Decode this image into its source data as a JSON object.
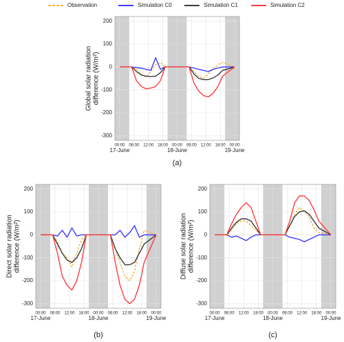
{
  "chart_data": [
    {
      "type": "line",
      "caption": "(a)",
      "ylabel": [
        "Global solar radiation",
        "difference (W/m²)"
      ],
      "x": [
        0,
        5,
        7,
        9,
        11,
        13,
        15,
        17,
        19,
        24,
        29,
        31,
        33,
        35,
        37,
        39,
        41,
        43,
        48
      ],
      "xlim": [
        -2,
        50
      ],
      "ylim": [
        -320,
        220
      ],
      "yticks": [
        200,
        100,
        0,
        -100,
        -200,
        -300
      ],
      "xticks": [
        {
          "value": 0,
          "label": "00:00"
        },
        {
          "value": 6,
          "label": "06:00"
        },
        {
          "value": 12,
          "label": "12:00"
        },
        {
          "value": 18,
          "label": "18:00"
        },
        {
          "value": 24,
          "label": "00:00"
        },
        {
          "value": 30,
          "label": "06:00"
        },
        {
          "value": 36,
          "label": "12:00"
        },
        {
          "value": 42,
          "label": "18:00"
        },
        {
          "value": 48,
          "label": "00:00"
        }
      ],
      "dates": [
        {
          "value": 0,
          "label": "17-June"
        },
        {
          "value": 24,
          "label": "18-June"
        },
        {
          "value": 48,
          "label": "19-June"
        }
      ],
      "night": [
        [
          -2,
          4
        ],
        [
          20,
          28
        ],
        [
          44,
          50
        ]
      ],
      "grid": true,
      "series": [
        {
          "name": "Observation",
          "color": "#f5b041",
          "dash": true,
          "values": [
            0,
            0,
            -10,
            -30,
            -45,
            -20,
            10,
            20,
            0,
            0,
            0,
            -20,
            -40,
            -50,
            -30,
            -10,
            10,
            20,
            0
          ]
        },
        {
          "name": "Simulation C0",
          "color": "#3b3bff",
          "dash": false,
          "values": [
            0,
            0,
            -3,
            -5,
            -10,
            -15,
            40,
            -10,
            0,
            0,
            0,
            -5,
            -10,
            -15,
            -20,
            -10,
            -5,
            0,
            0
          ]
        },
        {
          "name": "Simulation C1",
          "color": "#3a3a3a",
          "dash": false,
          "values": [
            0,
            0,
            -20,
            -35,
            -40,
            -42,
            -40,
            -25,
            0,
            0,
            0,
            -30,
            -50,
            -55,
            -55,
            -48,
            -35,
            -15,
            0
          ]
        },
        {
          "name": "Simulation C2",
          "color": "#ff3b3b",
          "dash": false,
          "values": [
            0,
            0,
            -60,
            -85,
            -95,
            -92,
            -85,
            -60,
            0,
            0,
            0,
            -70,
            -105,
            -125,
            -130,
            -115,
            -85,
            -40,
            0
          ]
        }
      ]
    },
    {
      "type": "line",
      "caption": "(b)",
      "ylabel": [
        "Direct solar radiation",
        "difference (W/m²)"
      ],
      "x": [
        0,
        5,
        7,
        9,
        11,
        13,
        15,
        17,
        19,
        24,
        29,
        31,
        33,
        35,
        37,
        39,
        41,
        43,
        48
      ],
      "xlim": [
        -2,
        50
      ],
      "ylim": [
        -320,
        220
      ],
      "yticks": [
        200,
        100,
        0,
        -100,
        -200,
        -300
      ],
      "xticks": [
        {
          "value": 0,
          "label": "00:00"
        },
        {
          "value": 6,
          "label": "06:00"
        },
        {
          "value": 12,
          "label": "12:00"
        },
        {
          "value": 18,
          "label": "18:00"
        },
        {
          "value": 24,
          "label": "00:00"
        },
        {
          "value": 30,
          "label": "06:00"
        },
        {
          "value": 36,
          "label": "12:00"
        },
        {
          "value": 42,
          "label": "18:00"
        },
        {
          "value": 48,
          "label": "00:00"
        }
      ],
      "dates": [
        {
          "value": 0,
          "label": "17-June"
        },
        {
          "value": 24,
          "label": "18-June"
        },
        {
          "value": 48,
          "label": "19-June"
        }
      ],
      "night": [
        [
          -2,
          4
        ],
        [
          20,
          28
        ],
        [
          44,
          50
        ]
      ],
      "grid": true,
      "series": [
        {
          "name": "Observation",
          "color": "#f5b041",
          "dash": true,
          "values": [
            0,
            0,
            -30,
            -80,
            -100,
            -140,
            -80,
            -20,
            0,
            0,
            0,
            -60,
            -120,
            -180,
            -200,
            -160,
            -60,
            20,
            0
          ]
        },
        {
          "name": "Simulation C0",
          "color": "#3b3bff",
          "dash": false,
          "values": [
            0,
            0,
            -5,
            20,
            -10,
            30,
            -5,
            0,
            0,
            0,
            0,
            0,
            20,
            -10,
            10,
            40,
            -10,
            0,
            0
          ]
        },
        {
          "name": "Simulation C1",
          "color": "#3a3a3a",
          "dash": false,
          "values": [
            0,
            0,
            -40,
            -80,
            -110,
            -120,
            -100,
            -60,
            0,
            0,
            0,
            -60,
            -100,
            -130,
            -130,
            -120,
            -80,
            -40,
            0
          ]
        },
        {
          "name": "Simulation C2",
          "color": "#ff3b3b",
          "dash": false,
          "values": [
            0,
            0,
            -80,
            -180,
            -220,
            -240,
            -200,
            -120,
            0,
            0,
            0,
            -120,
            -220,
            -280,
            -300,
            -280,
            -220,
            -120,
            0
          ]
        }
      ]
    },
    {
      "type": "line",
      "caption": "(c)",
      "ylabel": [
        "Diffuse solar radiation",
        "difference (W/m²)"
      ],
      "x": [
        0,
        5,
        7,
        9,
        11,
        13,
        15,
        17,
        19,
        24,
        29,
        31,
        33,
        35,
        37,
        39,
        41,
        43,
        48
      ],
      "xlim": [
        -2,
        50
      ],
      "ylim": [
        -320,
        220
      ],
      "yticks": [
        200,
        100,
        0,
        -100,
        -200,
        -300
      ],
      "xticks": [
        {
          "value": 0,
          "label": "00:00"
        },
        {
          "value": 6,
          "label": "06:00"
        },
        {
          "value": 12,
          "label": "12:00"
        },
        {
          "value": 18,
          "label": "18:00"
        },
        {
          "value": 24,
          "label": "00:00"
        },
        {
          "value": 30,
          "label": "06:00"
        },
        {
          "value": 36,
          "label": "12:00"
        },
        {
          "value": 42,
          "label": "18:00"
        },
        {
          "value": 48,
          "label": "00:00"
        }
      ],
      "dates": [
        {
          "value": 0,
          "label": "17-June"
        },
        {
          "value": 24,
          "label": "18-June"
        },
        {
          "value": 48,
          "label": "19-June"
        }
      ],
      "night": [
        [
          -2,
          4
        ],
        [
          20,
          28
        ],
        [
          44,
          50
        ]
      ],
      "grid": true,
      "series": [
        {
          "name": "Observation",
          "color": "#f5b041",
          "dash": true,
          "values": [
            0,
            0,
            20,
            50,
            60,
            60,
            40,
            20,
            0,
            0,
            0,
            40,
            90,
            120,
            100,
            80,
            30,
            10,
            0
          ]
        },
        {
          "name": "Simulation C0",
          "color": "#3b3bff",
          "dash": false,
          "values": [
            0,
            0,
            -10,
            -5,
            -15,
            -25,
            -10,
            0,
            0,
            0,
            0,
            -10,
            -15,
            -20,
            -30,
            -20,
            -10,
            0,
            0
          ]
        },
        {
          "name": "Simulation C1",
          "color": "#3a3a3a",
          "dash": false,
          "values": [
            0,
            0,
            30,
            55,
            70,
            70,
            60,
            30,
            0,
            0,
            0,
            40,
            80,
            100,
            105,
            90,
            60,
            30,
            0
          ]
        },
        {
          "name": "Simulation C2",
          "color": "#ff3b3b",
          "dash": false,
          "values": [
            0,
            0,
            50,
            90,
            120,
            140,
            120,
            60,
            0,
            0,
            0,
            60,
            140,
            170,
            170,
            150,
            110,
            60,
            0
          ]
        }
      ]
    }
  ]
}
